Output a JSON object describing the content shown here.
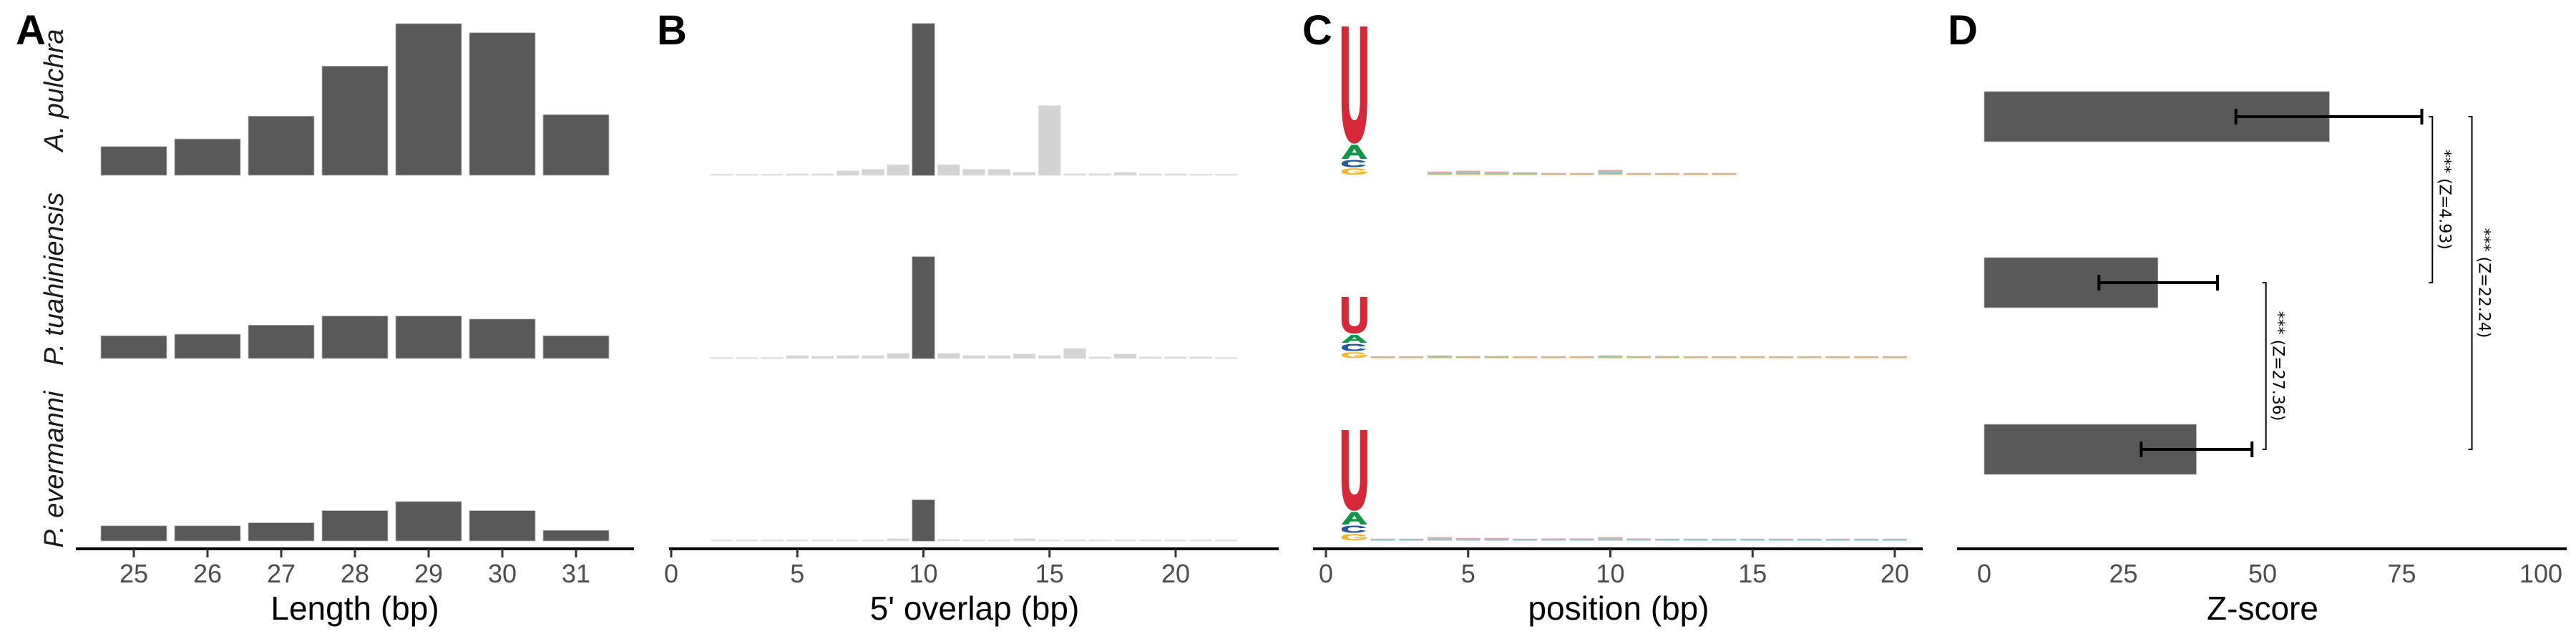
{
  "species": [
    "A. pulchra",
    "P. tuahiniensis",
    "P. evermanni"
  ],
  "panel_letters": [
    "A",
    "B",
    "C",
    "D"
  ],
  "colors": {
    "bar": "#595959",
    "bar_light": "#d3d3d3",
    "U": "#d62839",
    "A": "#109648",
    "C": "#255c99",
    "G": "#f7b32b"
  },
  "chart_data": [
    {
      "panel": "A",
      "type": "bar",
      "xlabel": "Length (bp)",
      "ylabel": "",
      "categories": [
        25,
        26,
        27,
        28,
        29,
        30,
        31
      ],
      "tick_labels": [
        "25",
        "26",
        "27",
        "28",
        "29",
        "30",
        "31"
      ],
      "ylim": [
        0,
        1
      ],
      "series": [
        {
          "name": "A. pulchra",
          "values": [
            0.19,
            0.24,
            0.39,
            0.72,
            1.0,
            0.94,
            0.4
          ]
        },
        {
          "name": "P. tuahiniensis",
          "values": [
            0.15,
            0.16,
            0.22,
            0.28,
            0.28,
            0.26,
            0.15
          ]
        },
        {
          "name": "P. evermanni",
          "values": [
            0.1,
            0.1,
            0.12,
            0.2,
            0.26,
            0.2,
            0.07
          ]
        }
      ]
    },
    {
      "panel": "B",
      "type": "bar",
      "xlabel": "5' overlap (bp)",
      "ylabel": "",
      "x": [
        2,
        3,
        4,
        5,
        6,
        7,
        8,
        9,
        10,
        11,
        12,
        13,
        14,
        15,
        16,
        17,
        18,
        19,
        20,
        21,
        22
      ],
      "highlight_x": 10,
      "xticks": [
        0,
        5,
        10,
        15,
        20
      ],
      "tick_labels": [
        "0",
        "5",
        "10",
        "15",
        "20"
      ],
      "xlim": [
        0,
        24
      ],
      "ylim": [
        0,
        1
      ],
      "series": [
        {
          "name": "A. pulchra",
          "values": [
            0.005,
            0.005,
            0.005,
            0.01,
            0.01,
            0.03,
            0.04,
            0.07,
            1.0,
            0.07,
            0.04,
            0.04,
            0.02,
            0.46,
            0.01,
            0.01,
            0.02,
            0.01,
            0.01,
            0.005,
            0.005
          ]
        },
        {
          "name": "P. tuahiniensis",
          "values": [
            0.005,
            0.005,
            0.005,
            0.02,
            0.015,
            0.02,
            0.02,
            0.035,
            0.67,
            0.035,
            0.02,
            0.02,
            0.03,
            0.02,
            0.066,
            0.01,
            0.03,
            0.01,
            0.01,
            0.01,
            0.005
          ]
        },
        {
          "name": "P. evermanni",
          "values": [
            0.003,
            0.003,
            0.003,
            0.003,
            0.003,
            0.003,
            0.005,
            0.015,
            0.27,
            0.01,
            0.003,
            0.003,
            0.015,
            0.005,
            0.003,
            0.003,
            0.003,
            0.003,
            0.003,
            0.003,
            0.003
          ]
        }
      ]
    },
    {
      "panel": "C",
      "type": "sequence-logo",
      "xlabel": "position (bp)",
      "xticks": [
        0,
        5,
        10,
        15,
        20
      ],
      "tick_labels": [
        "0",
        "5",
        "10",
        "15",
        "20"
      ],
      "ylim": [
        0,
        2
      ],
      "series": [
        {
          "name": "A. pulchra",
          "position1": {
            "U": 1.56,
            "A": 0.2,
            "C": 0.11,
            "G": 0.1
          },
          "minor": [
            [
              4,
              0.05
            ],
            [
              5,
              0.06
            ],
            [
              6,
              0.05
            ],
            [
              7,
              0.04
            ],
            [
              8,
              0.02
            ],
            [
              9,
              0.01
            ],
            [
              10,
              0.07
            ],
            [
              11,
              0.02
            ],
            [
              12,
              0.02
            ],
            [
              13,
              0.01
            ],
            [
              14,
              0.01
            ]
          ]
        },
        {
          "name": "P. tuahiniensis",
          "position1": {
            "U": 0.5,
            "A": 0.12,
            "C": 0.11,
            "G": 0.09
          },
          "minor": [
            [
              2,
              0.01
            ],
            [
              3,
              0.02
            ],
            [
              4,
              0.04
            ],
            [
              5,
              0.03
            ],
            [
              6,
              0.03
            ],
            [
              7,
              0.02
            ],
            [
              8,
              0.02
            ],
            [
              9,
              0.01
            ],
            [
              10,
              0.04
            ],
            [
              11,
              0.03
            ],
            [
              12,
              0.03
            ],
            [
              13,
              0.02
            ],
            [
              14,
              0.02
            ],
            [
              15,
              0.01
            ],
            [
              16,
              0.02
            ],
            [
              17,
              0.02
            ],
            [
              18,
              0.02
            ],
            [
              19,
              0.02
            ],
            [
              20,
              0.02
            ]
          ]
        },
        {
          "name": "P. evermanni",
          "position1": {
            "U": 1.08,
            "A": 0.18,
            "C": 0.11,
            "G": 0.1
          },
          "minor": [
            [
              2,
              0.01
            ],
            [
              3,
              0.01
            ],
            [
              4,
              0.05
            ],
            [
              5,
              0.04
            ],
            [
              6,
              0.04
            ],
            [
              7,
              0.02
            ],
            [
              8,
              0.03
            ],
            [
              9,
              0.03
            ],
            [
              10,
              0.05
            ],
            [
              11,
              0.03
            ],
            [
              12,
              0.02
            ],
            [
              13,
              0.02
            ],
            [
              14,
              0.02
            ],
            [
              15,
              0.02
            ],
            [
              16,
              0.02
            ],
            [
              17,
              0.02
            ],
            [
              18,
              0.02
            ],
            [
              19,
              0.02
            ],
            [
              20,
              0.02
            ]
          ]
        }
      ]
    },
    {
      "panel": "D",
      "type": "bar",
      "orientation": "horizontal",
      "xlabel": "Z-score",
      "xticks": [
        0,
        25,
        50,
        75,
        100
      ],
      "tick_labels": [
        "0",
        "25",
        "50",
        "75",
        "100"
      ],
      "xlim": [
        -5,
        105
      ],
      "values": [
        62.0,
        31.2,
        38.1
      ],
      "error_low": [
        45.2,
        20.6,
        28.2
      ],
      "error_high": [
        78.6,
        41.9,
        48.1
      ],
      "comparisons": [
        {
          "rows": [
            0,
            1
          ],
          "x": 80.5,
          "label": "*** (Z=4.93)"
        },
        {
          "rows": [
            0,
            2
          ],
          "x": 87.6,
          "label": "*** (Z=22.24)"
        },
        {
          "rows": [
            1,
            2
          ],
          "x": 50.6,
          "label": "*** (Z=27.36)"
        }
      ]
    }
  ]
}
